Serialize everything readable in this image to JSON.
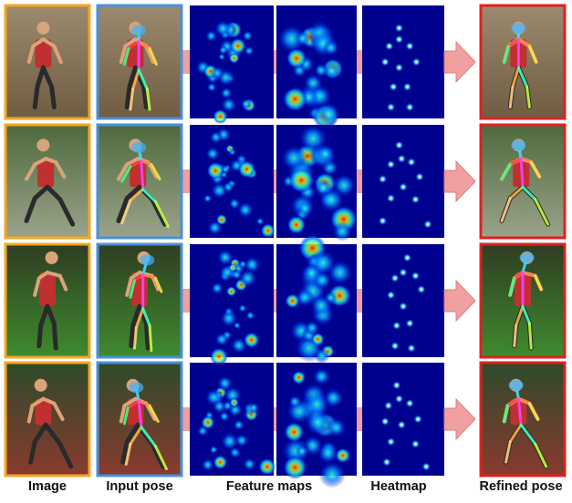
{
  "columns": {
    "image": "Image",
    "input_pose": "Input pose",
    "feature_maps": "Feature maps",
    "heatmap": "Heatmap",
    "refined_pose": "Refined pose"
  },
  "colors": {
    "image_border": "#f5a623",
    "input_pose_border": "#4a90d9",
    "refined_pose_border": "#e02020",
    "arrow_fill": "#f0a0a0",
    "arrow_stroke": "#d88080",
    "map_background": "#00008f"
  },
  "rows": [
    {
      "scene": "field-child",
      "scene_top": "#9c8a6e",
      "scene_bottom": "#6f5c42",
      "joints": [
        [
          0.45,
          0.2
        ],
        [
          0.45,
          0.3
        ],
        [
          0.33,
          0.36
        ],
        [
          0.58,
          0.36
        ],
        [
          0.28,
          0.5
        ],
        [
          0.66,
          0.5
        ],
        [
          0.45,
          0.55
        ],
        [
          0.38,
          0.72
        ],
        [
          0.55,
          0.72
        ],
        [
          0.35,
          0.9
        ],
        [
          0.58,
          0.9
        ]
      ]
    },
    {
      "scene": "runners",
      "scene_top": "#4e6a3c",
      "scene_bottom": "#9ba38a",
      "joints": [
        [
          0.45,
          0.18
        ],
        [
          0.48,
          0.3
        ],
        [
          0.35,
          0.35
        ],
        [
          0.6,
          0.33
        ],
        [
          0.25,
          0.48
        ],
        [
          0.7,
          0.46
        ],
        [
          0.5,
          0.55
        ],
        [
          0.35,
          0.65
        ],
        [
          0.65,
          0.66
        ],
        [
          0.25,
          0.85
        ],
        [
          0.8,
          0.88
        ]
      ]
    },
    {
      "scene": "frisbee",
      "scene_top": "#2f3d22",
      "scene_bottom": "#3f8a2e",
      "joints": [
        [
          0.55,
          0.12
        ],
        [
          0.5,
          0.25
        ],
        [
          0.4,
          0.3
        ],
        [
          0.65,
          0.28
        ],
        [
          0.35,
          0.45
        ],
        [
          0.72,
          0.4
        ],
        [
          0.5,
          0.55
        ],
        [
          0.42,
          0.72
        ],
        [
          0.58,
          0.7
        ],
        [
          0.4,
          0.9
        ],
        [
          0.6,
          0.92
        ]
      ]
    },
    {
      "scene": "track-runner",
      "scene_top": "#2e4a2a",
      "scene_bottom": "#8a3a2e",
      "joints": [
        [
          0.42,
          0.2
        ],
        [
          0.45,
          0.32
        ],
        [
          0.32,
          0.38
        ],
        [
          0.58,
          0.36
        ],
        [
          0.28,
          0.52
        ],
        [
          0.68,
          0.5
        ],
        [
          0.48,
          0.55
        ],
        [
          0.35,
          0.7
        ],
        [
          0.65,
          0.72
        ],
        [
          0.3,
          0.88
        ],
        [
          0.78,
          0.92
        ]
      ]
    }
  ]
}
